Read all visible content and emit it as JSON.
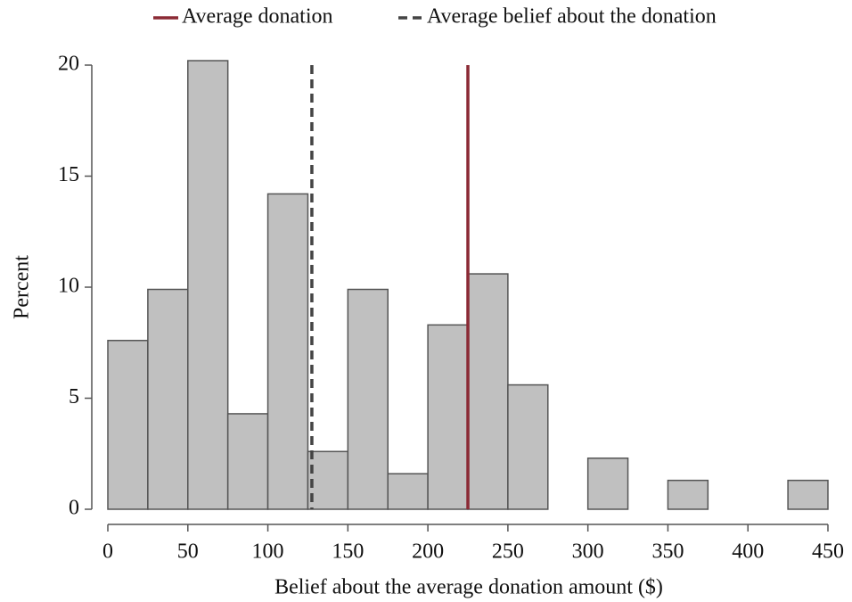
{
  "chart_data": {
    "type": "histogram",
    "x_label": "Belief about the average donation amount ($)",
    "y_label": "Percent",
    "bins": [
      0,
      25,
      50,
      75,
      100,
      125,
      150,
      175,
      200,
      225,
      250,
      275,
      300,
      325,
      350,
      375,
      400,
      425,
      450
    ],
    "values": [
      7.6,
      9.9,
      20.2,
      4.3,
      14.2,
      2.6,
      9.9,
      1.6,
      8.3,
      10.6,
      5.6,
      0,
      2.3,
      0,
      1.3,
      0,
      0,
      1.3
    ],
    "color": "#c0c0c0",
    "edge_color": "#555555",
    "xlim": [
      0,
      450
    ],
    "xticks": [
      0,
      50,
      100,
      150,
      200,
      250,
      300,
      350,
      400,
      450
    ],
    "ylim": [
      0,
      20
    ],
    "yticks": [
      0,
      5,
      10,
      15,
      20
    ],
    "grid": false,
    "legend": "top",
    "reference_lines": [
      {
        "name": "Average donation",
        "color": "#8b2a35",
        "x": 225,
        "style": "solid"
      },
      {
        "name": "Average belief about the donation",
        "color": "#444444",
        "x": 127.5,
        "style": "dashed"
      }
    ]
  }
}
